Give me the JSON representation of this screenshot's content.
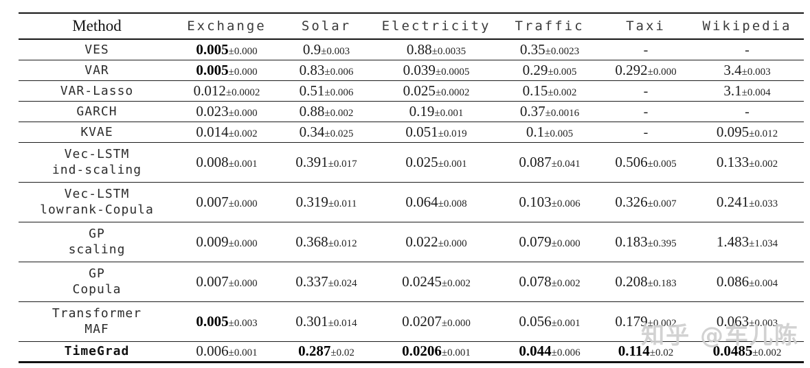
{
  "table": {
    "columns": [
      "Method",
      "Exchange",
      "Solar",
      "Electricity",
      "Traffic",
      "Taxi",
      "Wikipedia"
    ],
    "rows": [
      {
        "method": {
          "lines": [
            "VES"
          ],
          "bold": false
        },
        "cells": [
          {
            "value": "0.005",
            "std": "0.000",
            "bold": true
          },
          {
            "value": "0.9",
            "std": "0.003",
            "bold": false
          },
          {
            "value": "0.88",
            "std": "0.0035",
            "bold": false
          },
          {
            "value": "0.35",
            "std": "0.0023",
            "bold": false
          },
          {
            "dash": true
          },
          {
            "dash": true
          }
        ]
      },
      {
        "method": {
          "lines": [
            "VAR"
          ],
          "bold": false
        },
        "cells": [
          {
            "value": "0.005",
            "std": "0.000",
            "bold": true
          },
          {
            "value": "0.83",
            "std": "0.006",
            "bold": false
          },
          {
            "value": "0.039",
            "std": "0.0005",
            "bold": false
          },
          {
            "value": "0.29",
            "std": "0.005",
            "bold": false
          },
          {
            "value": "0.292",
            "std": "0.000",
            "bold": false
          },
          {
            "value": "3.4",
            "std": "0.003",
            "bold": false
          }
        ]
      },
      {
        "method": {
          "lines": [
            "VAR-Lasso"
          ],
          "bold": false
        },
        "cells": [
          {
            "value": "0.012",
            "std": "0.0002",
            "bold": false
          },
          {
            "value": "0.51",
            "std": "0.006",
            "bold": false
          },
          {
            "value": "0.025",
            "std": "0.0002",
            "bold": false
          },
          {
            "value": "0.15",
            "std": "0.002",
            "bold": false
          },
          {
            "dash": true
          },
          {
            "value": "3.1",
            "std": "0.004",
            "bold": false
          }
        ]
      },
      {
        "method": {
          "lines": [
            "GARCH"
          ],
          "bold": false
        },
        "cells": [
          {
            "value": "0.023",
            "std": "0.000",
            "bold": false
          },
          {
            "value": "0.88",
            "std": "0.002",
            "bold": false
          },
          {
            "value": "0.19",
            "std": "0.001",
            "bold": false
          },
          {
            "value": "0.37",
            "std": "0.0016",
            "bold": false
          },
          {
            "dash": true
          },
          {
            "dash": true
          }
        ]
      },
      {
        "method": {
          "lines": [
            "KVAE"
          ],
          "bold": false
        },
        "cells": [
          {
            "value": "0.014",
            "std": "0.002",
            "bold": false
          },
          {
            "value": "0.34",
            "std": "0.025",
            "bold": false
          },
          {
            "value": "0.051",
            "std": "0.019",
            "bold": false
          },
          {
            "value": "0.1",
            "std": "0.005",
            "bold": false
          },
          {
            "dash": true
          },
          {
            "value": "0.095",
            "std": "0.012",
            "bold": false
          }
        ]
      },
      {
        "method": {
          "lines": [
            "Vec-LSTM",
            "ind-scaling"
          ],
          "bold": false
        },
        "cells": [
          {
            "value": "0.008",
            "std": "0.001",
            "bold": false
          },
          {
            "value": "0.391",
            "std": "0.017",
            "bold": false
          },
          {
            "value": "0.025",
            "std": "0.001",
            "bold": false
          },
          {
            "value": "0.087",
            "std": "0.041",
            "bold": false
          },
          {
            "value": "0.506",
            "std": "0.005",
            "bold": false
          },
          {
            "value": "0.133",
            "std": "0.002",
            "bold": false
          }
        ]
      },
      {
        "method": {
          "lines": [
            "Vec-LSTM",
            "lowrank-Copula"
          ],
          "bold": false
        },
        "cells": [
          {
            "value": "0.007",
            "std": "0.000",
            "bold": false
          },
          {
            "value": "0.319",
            "std": "0.011",
            "bold": false
          },
          {
            "value": "0.064",
            "std": "0.008",
            "bold": false
          },
          {
            "value": "0.103",
            "std": "0.006",
            "bold": false
          },
          {
            "value": "0.326",
            "std": "0.007",
            "bold": false
          },
          {
            "value": "0.241",
            "std": "0.033",
            "bold": false
          }
        ]
      },
      {
        "method": {
          "lines": [
            "GP",
            "scaling"
          ],
          "bold": false
        },
        "cells": [
          {
            "value": "0.009",
            "std": "0.000",
            "bold": false
          },
          {
            "value": "0.368",
            "std": "0.012",
            "bold": false
          },
          {
            "value": "0.022",
            "std": "0.000",
            "bold": false
          },
          {
            "value": "0.079",
            "std": "0.000",
            "bold": false
          },
          {
            "value": "0.183",
            "std": "0.395",
            "bold": false
          },
          {
            "value": "1.483",
            "std": "1.034",
            "bold": false
          }
        ]
      },
      {
        "method": {
          "lines": [
            "GP",
            "Copula"
          ],
          "bold": false
        },
        "cells": [
          {
            "value": "0.007",
            "std": "0.000",
            "bold": false
          },
          {
            "value": "0.337",
            "std": "0.024",
            "bold": false
          },
          {
            "value": "0.0245",
            "std": "0.002",
            "bold": false
          },
          {
            "value": "0.078",
            "std": "0.002",
            "bold": false
          },
          {
            "value": "0.208",
            "std": "0.183",
            "bold": false
          },
          {
            "value": "0.086",
            "std": "0.004",
            "bold": false
          }
        ]
      },
      {
        "method": {
          "lines": [
            "Transformer",
            "MAF"
          ],
          "bold": false
        },
        "cells": [
          {
            "value": "0.005",
            "std": "0.003",
            "bold": true
          },
          {
            "value": "0.301",
            "std": "0.014",
            "bold": false
          },
          {
            "value": "0.0207",
            "std": "0.000",
            "bold": false
          },
          {
            "value": "0.056",
            "std": "0.001",
            "bold": false
          },
          {
            "value": "0.179",
            "std": "0.002",
            "bold": false
          },
          {
            "value": "0.063",
            "std": "0.003",
            "bold": false
          }
        ]
      },
      {
        "method": {
          "lines": [
            "TimeGrad"
          ],
          "bold": true
        },
        "cells": [
          {
            "value": "0.006",
            "std": "0.001",
            "bold": false
          },
          {
            "value": "0.287",
            "std": "0.02",
            "bold": true
          },
          {
            "value": "0.0206",
            "std": "0.001",
            "bold": true
          },
          {
            "value": "0.044",
            "std": "0.006",
            "bold": true
          },
          {
            "value": "0.114",
            "std": "0.02",
            "bold": true
          },
          {
            "value": "0.0485",
            "std": "0.002",
            "bold": true
          }
        ]
      }
    ],
    "plus_minus": "±"
  },
  "watermark": {
    "text": "知乎 @车儿陈"
  }
}
